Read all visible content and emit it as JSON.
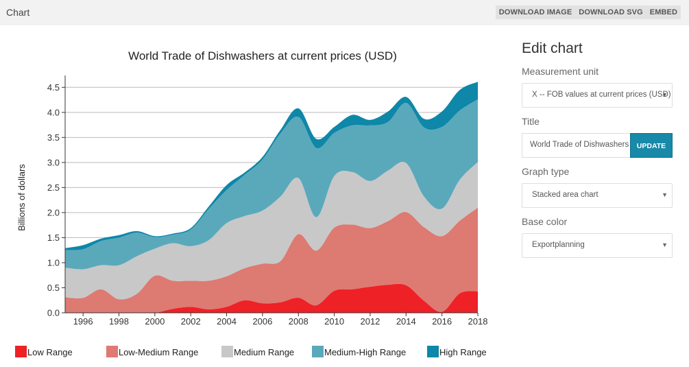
{
  "header": {
    "title": "Chart",
    "actions": [
      "DOWNLOAD IMAGE",
      "DOWNLOAD SVG",
      "EMBED"
    ]
  },
  "panel": {
    "heading": "Edit chart",
    "measurement_label": "Measurement unit",
    "measurement_value": "X -- FOB values at current prices (USD)",
    "title_label": "Title",
    "title_value": "World Trade of Dishwashers at current prices (USD)",
    "update_label": "UPDATE",
    "graph_type_label": "Graph type",
    "graph_type_value": "Stacked area chart",
    "base_color_label": "Base color",
    "base_color_value": "Exportplanning"
  },
  "chart_data": {
    "type": "area",
    "stacked": true,
    "title": "World Trade of Dishwashers at current prices (USD)",
    "xlabel": "",
    "ylabel": "Billions of dollars",
    "xlim": [
      1995,
      2018
    ],
    "ylim": [
      0,
      4.6
    ],
    "grid": true,
    "legend_position": "bottom",
    "x_ticks": [
      1996,
      1998,
      2000,
      2002,
      2004,
      2006,
      2008,
      2010,
      2012,
      2014,
      2016,
      2018
    ],
    "y_ticks": [
      0.0,
      0.5,
      1.0,
      1.5,
      2.0,
      2.5,
      3.0,
      3.5,
      4.0,
      4.5
    ],
    "x": [
      1995,
      1996,
      1997,
      1998,
      1999,
      2000,
      2001,
      2002,
      2003,
      2004,
      2005,
      2006,
      2007,
      2008,
      2009,
      2010,
      2011,
      2012,
      2013,
      2014,
      2015,
      2016,
      2017,
      2018
    ],
    "series": [
      {
        "name": "Low Range",
        "color": "#ee2127",
        "values": [
          0.0,
          0.0,
          0.0,
          0.0,
          0.0,
          0.0,
          0.08,
          0.12,
          0.07,
          0.12,
          0.25,
          0.19,
          0.21,
          0.3,
          0.15,
          0.44,
          0.47,
          0.52,
          0.56,
          0.55,
          0.24,
          0.02,
          0.39,
          0.43
        ]
      },
      {
        "name": "Low-Medium Range",
        "color": "#dd7a72",
        "values": [
          0.31,
          0.3,
          0.47,
          0.27,
          0.38,
          0.74,
          0.56,
          0.52,
          0.57,
          0.61,
          0.64,
          0.79,
          0.82,
          1.27,
          1.09,
          1.26,
          1.29,
          1.17,
          1.27,
          1.46,
          1.47,
          1.51,
          1.45,
          1.67
        ]
      },
      {
        "name": "Medium Range",
        "color": "#c8c8c8",
        "values": [
          0.59,
          0.57,
          0.48,
          0.68,
          0.75,
          0.54,
          0.75,
          0.69,
          0.81,
          1.06,
          1.04,
          1.06,
          1.29,
          1.12,
          0.67,
          1.03,
          1.05,
          0.94,
          1.01,
          0.98,
          0.61,
          0.55,
          0.82,
          0.91
        ]
      },
      {
        "name": "Medium-High Range",
        "color": "#5aa9bb",
        "values": [
          0.35,
          0.4,
          0.48,
          0.55,
          0.47,
          0.23,
          0.17,
          0.33,
          0.62,
          0.66,
          0.82,
          1.02,
          1.26,
          1.22,
          1.38,
          0.86,
          0.93,
          1.11,
          0.97,
          1.2,
          1.38,
          1.63,
          1.38,
          1.25
        ]
      },
      {
        "name": "High Range",
        "color": "#0e87a8",
        "values": [
          0.04,
          0.08,
          0.05,
          0.05,
          0.03,
          0.02,
          0.02,
          0.03,
          0.05,
          0.1,
          0.05,
          0.05,
          0.07,
          0.17,
          0.18,
          0.12,
          0.21,
          0.11,
          0.21,
          0.12,
          0.17,
          0.31,
          0.41,
          0.35
        ]
      }
    ]
  }
}
